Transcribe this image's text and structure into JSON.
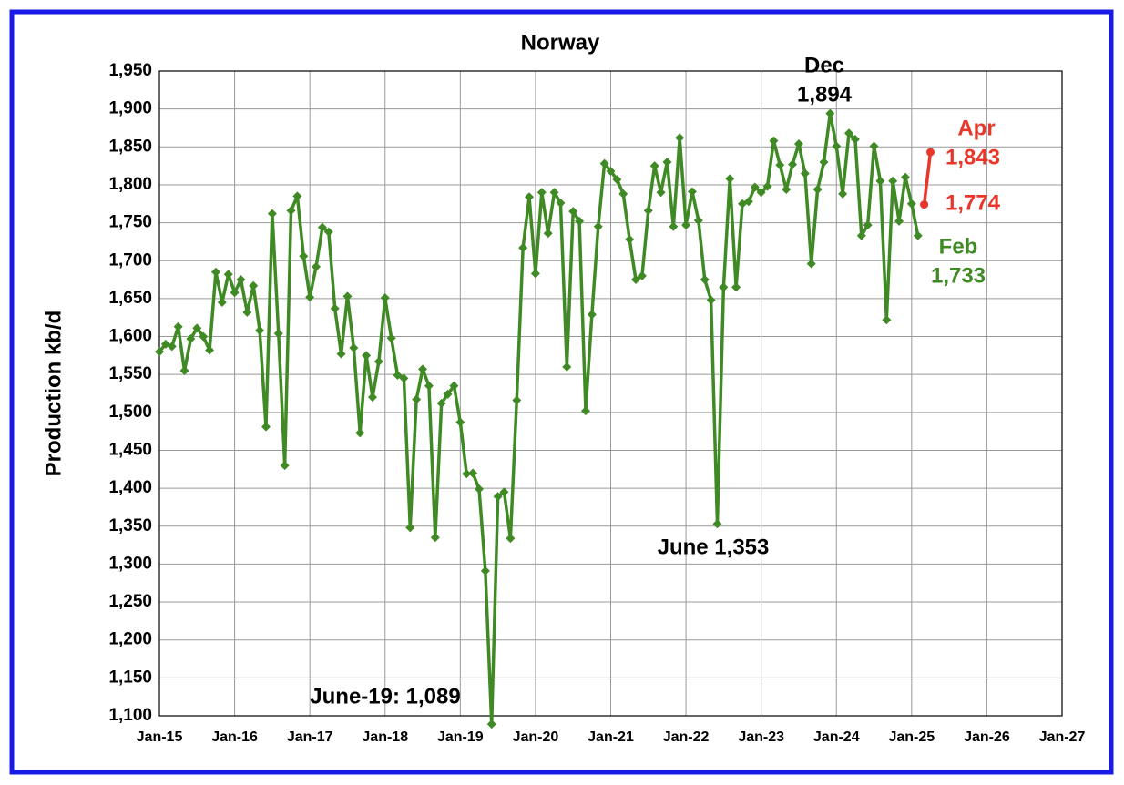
{
  "chart_data": {
    "type": "line",
    "title": "Norway",
    "y_label": "Production kb/d",
    "categories": [
      "Jan-15",
      null,
      null,
      null,
      null,
      null,
      null,
      null,
      null,
      null,
      null,
      null,
      "Jan-16",
      null,
      null,
      null,
      null,
      null,
      null,
      null,
      null,
      null,
      null,
      null,
      "Jan-17",
      null,
      null,
      null,
      null,
      null,
      null,
      null,
      null,
      null,
      null,
      null,
      "Jan-18",
      null,
      null,
      null,
      null,
      null,
      null,
      null,
      null,
      null,
      null,
      null,
      "Jan-19",
      null,
      null,
      null,
      null,
      null,
      null,
      null,
      null,
      null,
      null,
      null,
      "Jan-20",
      null,
      null,
      null,
      null,
      null,
      null,
      null,
      null,
      null,
      null,
      null,
      "Jan-21",
      null,
      null,
      null,
      null,
      null,
      null,
      null,
      null,
      null,
      null,
      null,
      "Jan-22",
      null,
      null,
      null,
      null,
      null,
      null,
      null,
      null,
      null,
      null,
      null,
      "Jan-23",
      null,
      null,
      null,
      null,
      null,
      null,
      null,
      null,
      null,
      null,
      null,
      "Jan-24",
      null,
      null,
      null,
      null,
      null,
      null,
      null,
      null,
      null,
      null,
      null,
      "Jan-25",
      null,
      null,
      null,
      null,
      null,
      null,
      null,
      null,
      null,
      null,
      null,
      "Jan-26",
      null,
      null,
      null,
      null,
      null,
      null,
      null,
      null,
      null,
      null,
      null,
      "Jan-27"
    ],
    "series": [
      {
        "color": "#3f8a24",
        "marker": "diamond",
        "values": [
          1580,
          1590,
          1587,
          1613,
          1555,
          1597,
          1611,
          1600,
          1582,
          1685,
          1645,
          1682,
          1658,
          1675,
          1632,
          1667,
          1608,
          1481,
          1762,
          1604,
          1430,
          1766,
          1785,
          1706,
          1652,
          1692,
          1744,
          1738,
          1637,
          1577,
          1653,
          1585,
          1473,
          1575,
          1520,
          1567,
          1651,
          1598,
          1549,
          1545,
          1348,
          1517,
          1557,
          1535,
          1335,
          1512,
          1524,
          1535,
          1487,
          1419,
          1420,
          1399,
          1291,
          1089,
          1389,
          1395,
          1334,
          1516,
          1717,
          1784,
          1683,
          1790,
          1736,
          1790,
          1776,
          1560,
          1765,
          1752,
          1502,
          1629,
          1745,
          1828,
          1818,
          1807,
          1788,
          1728,
          1675,
          1680,
          1766,
          1825,
          1790,
          1830,
          1745,
          1862,
          1747,
          1791,
          1753,
          1675,
          1648,
          1353,
          1665,
          1808,
          1665,
          1775,
          1778,
          1797,
          1790,
          1798,
          1858,
          1826,
          1794,
          1827,
          1854,
          1815,
          1696,
          1794,
          1830,
          1894,
          1851,
          1788,
          1868,
          1860,
          1733,
          1747,
          1851,
          1805,
          1622,
          1805,
          1752,
          1810,
          1775,
          1733,
          null,
          null,
          null,
          null,
          null,
          null,
          null,
          null,
          null,
          null,
          null,
          null,
          null,
          null,
          null,
          null,
          null,
          null,
          null,
          null,
          null,
          null,
          null
        ]
      },
      {
        "color": "#e8372a",
        "marker": "circle",
        "values": [
          null,
          null,
          null,
          null,
          null,
          null,
          null,
          null,
          null,
          null,
          null,
          null,
          null,
          null,
          null,
          null,
          null,
          null,
          null,
          null,
          null,
          null,
          null,
          null,
          null,
          null,
          null,
          null,
          null,
          null,
          null,
          null,
          null,
          null,
          null,
          null,
          null,
          null,
          null,
          null,
          null,
          null,
          null,
          null,
          null,
          null,
          null,
          null,
          null,
          null,
          null,
          null,
          null,
          null,
          null,
          null,
          null,
          null,
          null,
          null,
          null,
          null,
          null,
          null,
          null,
          null,
          null,
          null,
          null,
          null,
          null,
          null,
          null,
          null,
          null,
          null,
          null,
          null,
          null,
          null,
          null,
          null,
          null,
          null,
          null,
          null,
          null,
          null,
          null,
          null,
          null,
          null,
          null,
          null,
          null,
          null,
          null,
          null,
          null,
          null,
          null,
          null,
          null,
          null,
          null,
          null,
          null,
          null,
          null,
          null,
          null,
          null,
          null,
          null,
          null,
          null,
          null,
          null,
          null,
          null,
          null,
          null,
          1774,
          1843,
          null,
          null,
          null,
          null,
          null,
          null,
          null,
          null,
          null,
          null,
          null,
          null,
          null,
          null,
          null,
          null,
          null,
          null,
          null,
          null,
          null
        ]
      }
    ],
    "ylim": [
      1100,
      1950
    ],
    "yticks": [
      {
        "value": 1100,
        "label": "1,100"
      },
      {
        "value": 1150,
        "label": "1,150"
      },
      {
        "value": 1200,
        "label": "1,200"
      },
      {
        "value": 1250,
        "label": "1,250"
      },
      {
        "value": 1300,
        "label": "1,300"
      },
      {
        "value": 1350,
        "label": "1,350"
      },
      {
        "value": 1400,
        "label": "1,400"
      },
      {
        "value": 1450,
        "label": "1,450"
      },
      {
        "value": 1500,
        "label": "1,500"
      },
      {
        "value": 1550,
        "label": "1,550"
      },
      {
        "value": 1600,
        "label": "1,600"
      },
      {
        "value": 1650,
        "label": "1,650"
      },
      {
        "value": 1700,
        "label": "1,700"
      },
      {
        "value": 1750,
        "label": "1,750"
      },
      {
        "value": 1800,
        "label": "1,800"
      },
      {
        "value": 1850,
        "label": "1,850"
      },
      {
        "value": 1900,
        "label": "1,900"
      },
      {
        "value": 1950,
        "label": "1,950"
      }
    ],
    "grid": true,
    "annotations": [
      "Dec",
      "1,894",
      "June 1,353",
      "June-19: 1,089",
      "Apr",
      "1,843",
      "1,774",
      "Feb",
      "1,733"
    ]
  }
}
